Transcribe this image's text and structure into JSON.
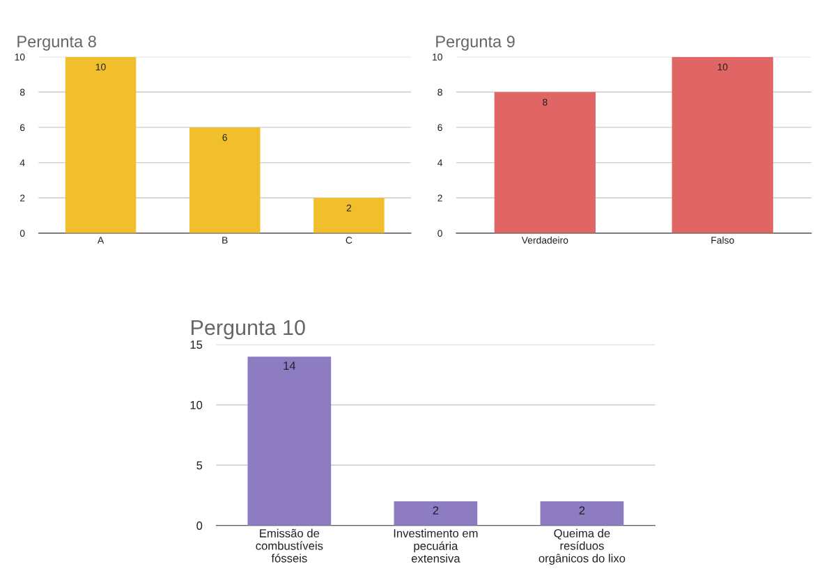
{
  "chart_data": [
    {
      "type": "bar",
      "title": "Pergunta 8",
      "categories": [
        "A",
        "B",
        "C"
      ],
      "values": [
        10,
        6,
        2
      ],
      "color": "#f1bf2b",
      "ylim": [
        0,
        10
      ],
      "yticks": [
        0,
        2,
        4,
        6,
        8,
        10
      ],
      "grid": "y",
      "data_labels": true
    },
    {
      "type": "bar",
      "title": "Pergunta 9",
      "categories": [
        "Verdadeiro",
        "Falso"
      ],
      "values": [
        8,
        10
      ],
      "color": "#e06666",
      "ylim": [
        0,
        10
      ],
      "yticks": [
        0,
        2,
        4,
        6,
        8,
        10
      ],
      "grid": "y",
      "data_labels": true
    },
    {
      "type": "bar",
      "title": "Pergunta 10",
      "categories": [
        "Emissão de\ncombustíveis\nfósseis",
        "Investimento em\npecuária\nextensiva",
        "Queima de\nresíduos\norgânicos do lixo"
      ],
      "values": [
        14,
        2,
        2
      ],
      "color": "#8e7cc3",
      "ylim": [
        0,
        15
      ],
      "yticks": [
        0,
        5,
        10,
        15
      ],
      "grid": "y",
      "data_labels": true
    }
  ]
}
